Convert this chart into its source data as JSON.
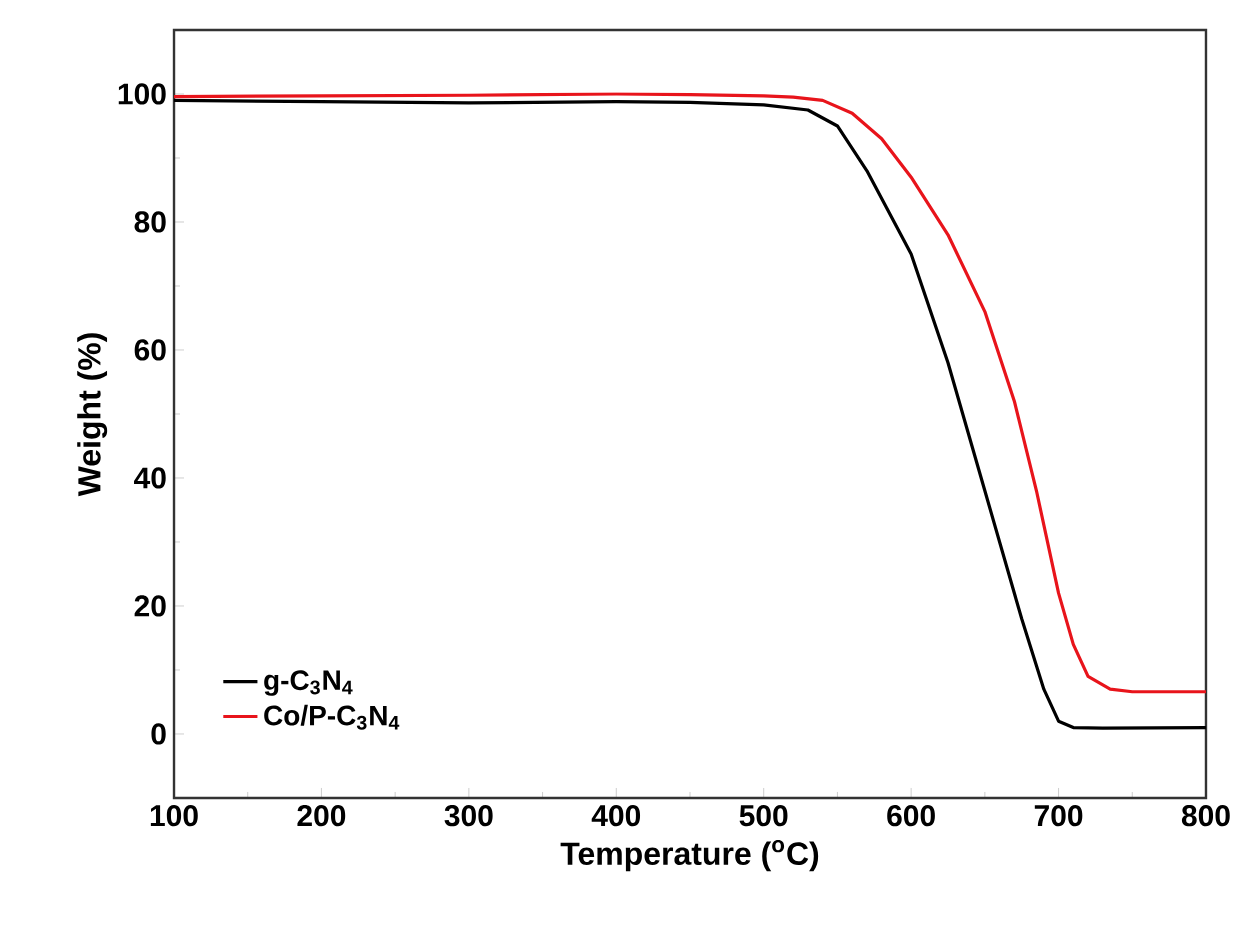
{
  "chart_data": {
    "type": "line",
    "xlabel": "Temperature ($^{o}$C)",
    "ylabel": "Weight (%)",
    "xlim": [
      100,
      800
    ],
    "ylim": [
      -10,
      110
    ],
    "xticks": [
      100,
      200,
      300,
      400,
      500,
      600,
      700,
      800
    ],
    "yticks": [
      0,
      20,
      40,
      60,
      80,
      100
    ],
    "legend": "bottom left",
    "line_style": "solid",
    "marker": "none",
    "series": [
      {
        "name": "g-C$_{3}$N$_{4}$",
        "color": "#000000",
        "x": [
          100,
          200,
          300,
          400,
          450,
          500,
          530,
          550,
          570,
          600,
          625,
          650,
          675,
          690,
          700,
          710,
          730,
          800
        ],
        "values": [
          99,
          98.8,
          98.6,
          98.8,
          98.7,
          98.3,
          97.5,
          95,
          88,
          75,
          58,
          38,
          18,
          7,
          2,
          1,
          0.9,
          1
        ]
      },
      {
        "name": "Co/P-C$_{3}$N$_{4}$",
        "color": "#e8141b",
        "x": [
          100,
          200,
          300,
          400,
          450,
          500,
          520,
          540,
          560,
          580,
          600,
          625,
          650,
          670,
          685,
          700,
          710,
          720,
          735,
          750,
          800
        ],
        "values": [
          99.6,
          99.7,
          99.8,
          100,
          99.9,
          99.7,
          99.5,
          99,
          97,
          93,
          87,
          78,
          66,
          52,
          38,
          22,
          14,
          9,
          7,
          6.6,
          6.6
        ]
      }
    ]
  }
}
